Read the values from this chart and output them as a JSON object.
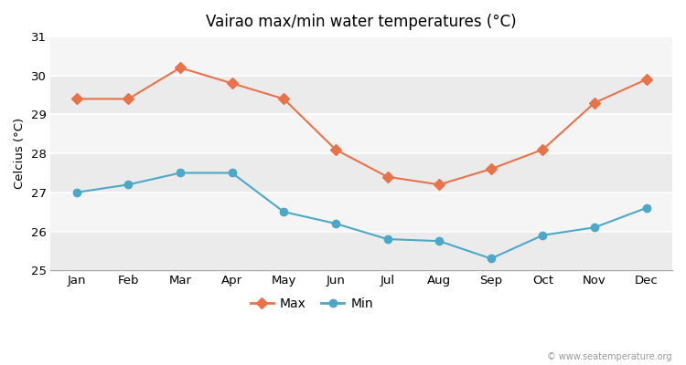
{
  "title": "Vairao max/min water temperatures (°C)",
  "ylabel": "Celcius (°C)",
  "months": [
    "Jan",
    "Feb",
    "Mar",
    "Apr",
    "May",
    "Jun",
    "Jul",
    "Aug",
    "Sep",
    "Oct",
    "Nov",
    "Dec"
  ],
  "max_temps": [
    29.4,
    29.4,
    30.2,
    29.8,
    29.4,
    28.1,
    27.4,
    27.2,
    27.6,
    28.1,
    29.3,
    29.9
  ],
  "min_temps": [
    27.0,
    27.2,
    27.5,
    27.5,
    26.5,
    26.2,
    25.8,
    25.75,
    25.3,
    25.9,
    26.1,
    26.6
  ],
  "max_color": "#e8734a",
  "min_color": "#4da8c7",
  "bg_color": "#ffffff",
  "band_colors": [
    "#ebebeb",
    "#f5f5f5"
  ],
  "grid_line_color": "#ffffff",
  "ylim": [
    25,
    31
  ],
  "yticks": [
    25,
    26,
    27,
    28,
    29,
    30,
    31
  ],
  "watermark": "© www.seatemperature.org",
  "legend_max": "Max",
  "legend_min": "Min"
}
